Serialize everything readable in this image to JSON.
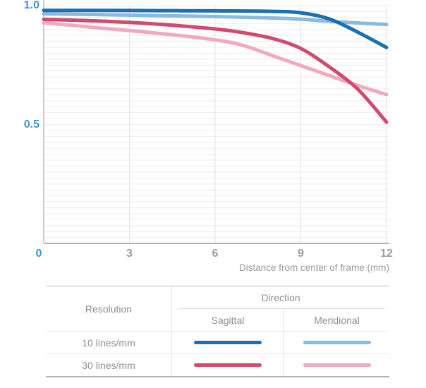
{
  "chart_data": {
    "type": "line",
    "title": "",
    "xlabel": "Distance from center of frame (mm)",
    "ylabel": "",
    "xlim": [
      0,
      12
    ],
    "ylim": [
      0,
      1.0
    ],
    "xticks": [
      0,
      3,
      6,
      9,
      12
    ],
    "xtick_labels": [
      "0",
      "3",
      "6",
      "9",
      "12"
    ],
    "ytick_labels": [
      {
        "value": 1.0,
        "label": "1.0"
      },
      {
        "value": 0.5,
        "label": "0.5"
      }
    ],
    "grid": {
      "horizontal_step": 0.025,
      "vertical_at_xticks": true,
      "grid_on": true
    },
    "legend_position": "bottom-table",
    "series": [
      {
        "name": "10 lines/mm Meridional",
        "resolution": "10 lines/mm",
        "direction": "Meridional",
        "color": "#8abade",
        "points": [
          [
            0,
            0.966
          ],
          [
            2,
            0.962
          ],
          [
            4,
            0.958
          ],
          [
            6,
            0.954
          ],
          [
            8,
            0.948
          ],
          [
            9,
            0.943
          ],
          [
            10,
            0.934
          ],
          [
            11,
            0.927
          ],
          [
            12,
            0.921
          ]
        ]
      },
      {
        "name": "30 lines/mm Meridional",
        "resolution": "30 lines/mm",
        "direction": "Meridional",
        "color": "#f0a9bf",
        "points": [
          [
            0,
            0.928
          ],
          [
            2,
            0.906
          ],
          [
            4,
            0.884
          ],
          [
            6,
            0.856
          ],
          [
            7,
            0.832
          ],
          [
            8,
            0.79
          ],
          [
            9,
            0.748
          ],
          [
            10,
            0.706
          ],
          [
            11,
            0.664
          ],
          [
            12,
            0.626
          ]
        ]
      },
      {
        "name": "30 lines/mm Sagittal",
        "resolution": "30 lines/mm",
        "direction": "Sagittal",
        "color": "#d24a6e",
        "points": [
          [
            0,
            0.942
          ],
          [
            2,
            0.935
          ],
          [
            4,
            0.922
          ],
          [
            6,
            0.902
          ],
          [
            7,
            0.886
          ],
          [
            8,
            0.862
          ],
          [
            9,
            0.82
          ],
          [
            10,
            0.742
          ],
          [
            11,
            0.648
          ],
          [
            12,
            0.51
          ]
        ]
      },
      {
        "name": "10 lines/mm Sagittal",
        "resolution": "10 lines/mm",
        "direction": "Sagittal",
        "color": "#1b70b4",
        "points": [
          [
            0,
            0.98
          ],
          [
            2,
            0.98
          ],
          [
            4,
            0.979
          ],
          [
            6,
            0.978
          ],
          [
            8,
            0.976
          ],
          [
            9,
            0.97
          ],
          [
            10,
            0.944
          ],
          [
            11,
            0.888
          ],
          [
            12,
            0.824
          ]
        ]
      }
    ]
  },
  "colors": {
    "accent_axis_label": "#3e95cf",
    "tick_gray": "#9b9b9b",
    "grid_horizontal": "#ededed",
    "grid_vertical": "#e2e2e2",
    "axis_line": "#bfbfbf",
    "bottom_axis_line": "#b5b5b5"
  },
  "legend": {
    "resolution_header": "Resolution",
    "direction_header": "Direction",
    "direction_columns": [
      "Sagittal",
      "Meridional"
    ],
    "rows": [
      {
        "label": "10 lines/mm",
        "sagittal_color": "#1b70b4",
        "meridional_color": "#8abade"
      },
      {
        "label": "30 lines/mm",
        "sagittal_color": "#d24a6e",
        "meridional_color": "#f0a9bf"
      }
    ]
  }
}
